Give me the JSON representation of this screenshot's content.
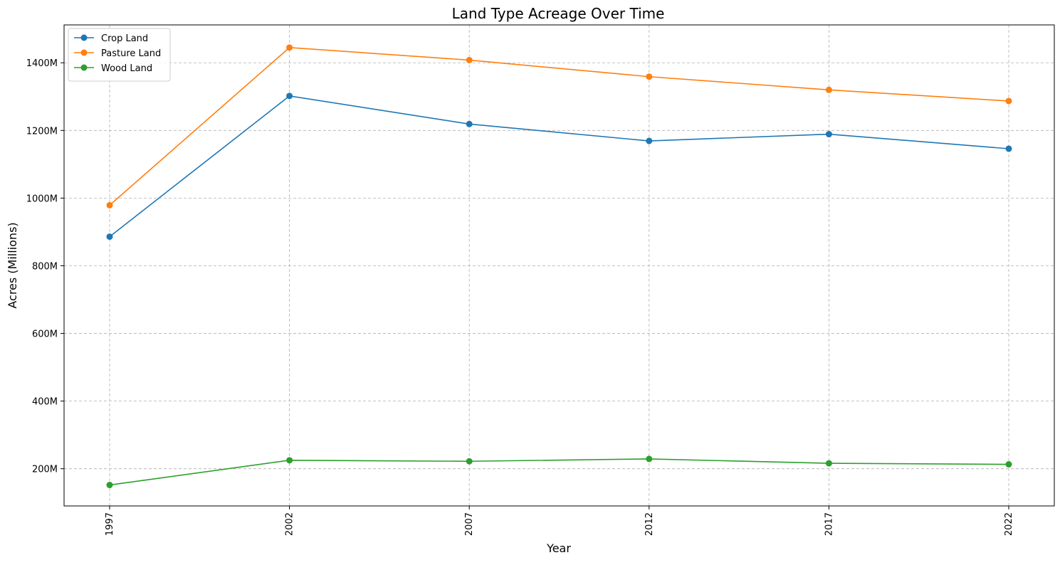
{
  "chart_data": {
    "type": "line",
    "title": "Land Type Acreage Over Time",
    "xlabel": "Year",
    "ylabel": "Acres (Millions)",
    "x": [
      "1997",
      "2002",
      "2007",
      "2012",
      "2017",
      "2022"
    ],
    "y_ticks": [
      {
        "value": 200,
        "label": "200M"
      },
      {
        "value": 400,
        "label": "400M"
      },
      {
        "value": 600,
        "label": "600M"
      },
      {
        "value": 800,
        "label": "800M"
      },
      {
        "value": 1000,
        "label": "1000M"
      },
      {
        "value": 1200,
        "label": "1200M"
      },
      {
        "value": 1400,
        "label": "1400M"
      }
    ],
    "ylim": [
      90,
      1512
    ],
    "grid": true,
    "legend_position": "top-left",
    "series": [
      {
        "name": "Crop Land",
        "color": "#1f77b4",
        "values": [
          886,
          1302,
          1219,
          1169,
          1189,
          1146
        ]
      },
      {
        "name": "Pasture Land",
        "color": "#ff7f0e",
        "values": [
          979,
          1445,
          1408,
          1359,
          1320,
          1287
        ]
      },
      {
        "name": "Wood Land",
        "color": "#2ca02c",
        "values": [
          152,
          225,
          222,
          229,
          216,
          213
        ]
      }
    ]
  }
}
